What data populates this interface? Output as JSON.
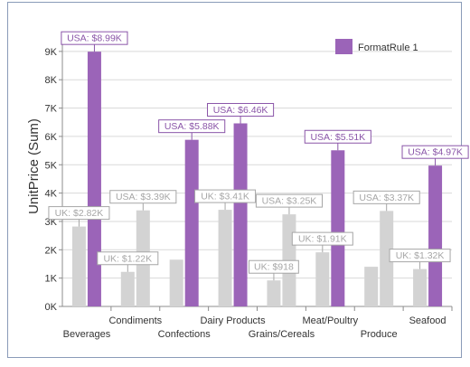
{
  "chart_data": {
    "type": "bar",
    "title": "",
    "xlabel": "",
    "ylabel": "UnitPrice (Sum)",
    "ylim": [
      0,
      9500
    ],
    "yticks": [
      "0K",
      "1K",
      "2K",
      "3K",
      "4K",
      "5K",
      "6K",
      "7K",
      "8K",
      "9K"
    ],
    "grid": true,
    "legend_position": "top-right",
    "categories": [
      "Beverages",
      "Condiments",
      "Confections",
      "Dairy Products",
      "Grains/Cereals",
      "Meat/Poultry",
      "Produce",
      "Seafood"
    ],
    "series": [
      {
        "name": "UK",
        "values": [
          2820,
          1220,
          1650,
          3410,
          918,
          1910,
          1400,
          1320
        ],
        "labels": [
          "UK: $2.82K",
          "UK: $1.22K",
          "",
          "UK: $3.41K",
          "UK: $918",
          "UK: $1.91K",
          "",
          "UK: $1.32K"
        ]
      },
      {
        "name": "USA",
        "values": [
          8990,
          3390,
          5880,
          6460,
          3250,
          5510,
          3370,
          4970
        ],
        "labels": [
          "USA: $8.99K",
          "USA: $3.39K",
          "USA: $5.88K",
          "USA: $6.46K",
          "USA: $3.25K",
          "USA: $5.51K",
          "USA: $3.37K",
          "USA: $4.97K"
        ],
        "highlighted": [
          true,
          false,
          true,
          true,
          false,
          true,
          false,
          true
        ]
      }
    ],
    "legend": [
      {
        "label": "FormatRule 1",
        "color": "#9b64b8"
      }
    ],
    "colors": {
      "normal": "#d3d3d3",
      "rule": "#9b64b8",
      "normal_label": "#a6a6a6",
      "rule_label": "#8a55a8",
      "axis": "#8c8c8c",
      "grid": "#d9d9d9"
    }
  }
}
